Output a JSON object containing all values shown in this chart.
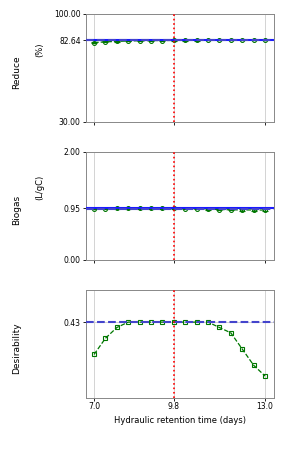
{
  "x": [
    7.0,
    7.4,
    7.8,
    8.2,
    8.6,
    9.0,
    9.4,
    9.8,
    10.2,
    10.6,
    11.0,
    11.4,
    11.8,
    12.2,
    12.6,
    13.0
  ],
  "reduce_y": [
    81.3,
    81.7,
    82.05,
    82.3,
    82.45,
    82.55,
    82.6,
    82.64,
    82.72,
    82.76,
    82.79,
    82.82,
    82.84,
    82.85,
    82.85,
    82.84
  ],
  "reduce_yerr": [
    0.35,
    0.28,
    0.22,
    0.2,
    0.18,
    0.17,
    0.17,
    0.16,
    0.16,
    0.16,
    0.16,
    0.16,
    0.16,
    0.16,
    0.16,
    0.16
  ],
  "reduce_solid": 82.64,
  "reduce_dashed": 82.76,
  "reduce_ylim": [
    30.0,
    100.0
  ],
  "reduce_yticks": [
    30.0,
    82.64,
    100.0
  ],
  "reduce_ytick_labels": [
    "30.00",
    "82.64",
    "100.00"
  ],
  "biogas_y": [
    0.945,
    0.941,
    0.95,
    0.951,
    0.952,
    0.952,
    0.952,
    0.95,
    0.945,
    0.94,
    0.935,
    0.928,
    0.923,
    0.921,
    0.92,
    0.918
  ],
  "biogas_yerr": [
    0.008,
    0.007,
    0.007,
    0.006,
    0.006,
    0.006,
    0.006,
    0.006,
    0.007,
    0.008,
    0.009,
    0.01,
    0.012,
    0.014,
    0.016,
    0.018
  ],
  "biogas_solid": 0.953,
  "biogas_dashed": 0.942,
  "biogas_ylim": [
    0.0,
    2.0
  ],
  "biogas_yticks": [
    0.0,
    0.95,
    2.0
  ],
  "biogas_ytick_labels": [
    "0.00",
    "0.95",
    "2.00"
  ],
  "desir_y": [
    0.424,
    0.427,
    0.429,
    0.43,
    0.43,
    0.43,
    0.43,
    0.43,
    0.43,
    0.43,
    0.43,
    0.429,
    0.428,
    0.425,
    0.422,
    0.42
  ],
  "desir_dashed": 0.43,
  "desir_ytick_labels": [
    "0.43"
  ],
  "vline_x": 9.8,
  "xlim": [
    6.7,
    13.3
  ],
  "xticks": [
    7.0,
    9.8,
    13.0
  ],
  "xtick_labels": [
    "7.0",
    "9.8",
    "13.0"
  ],
  "xlabel": "Hydraulic retention time (days)",
  "green_color": "#007700",
  "blue_solid": "#1a1aff",
  "blue_dashed": "#4444cc",
  "red_vline": "#ff0000",
  "bg_color": "#ffffff",
  "grid_color": "#cccccc"
}
